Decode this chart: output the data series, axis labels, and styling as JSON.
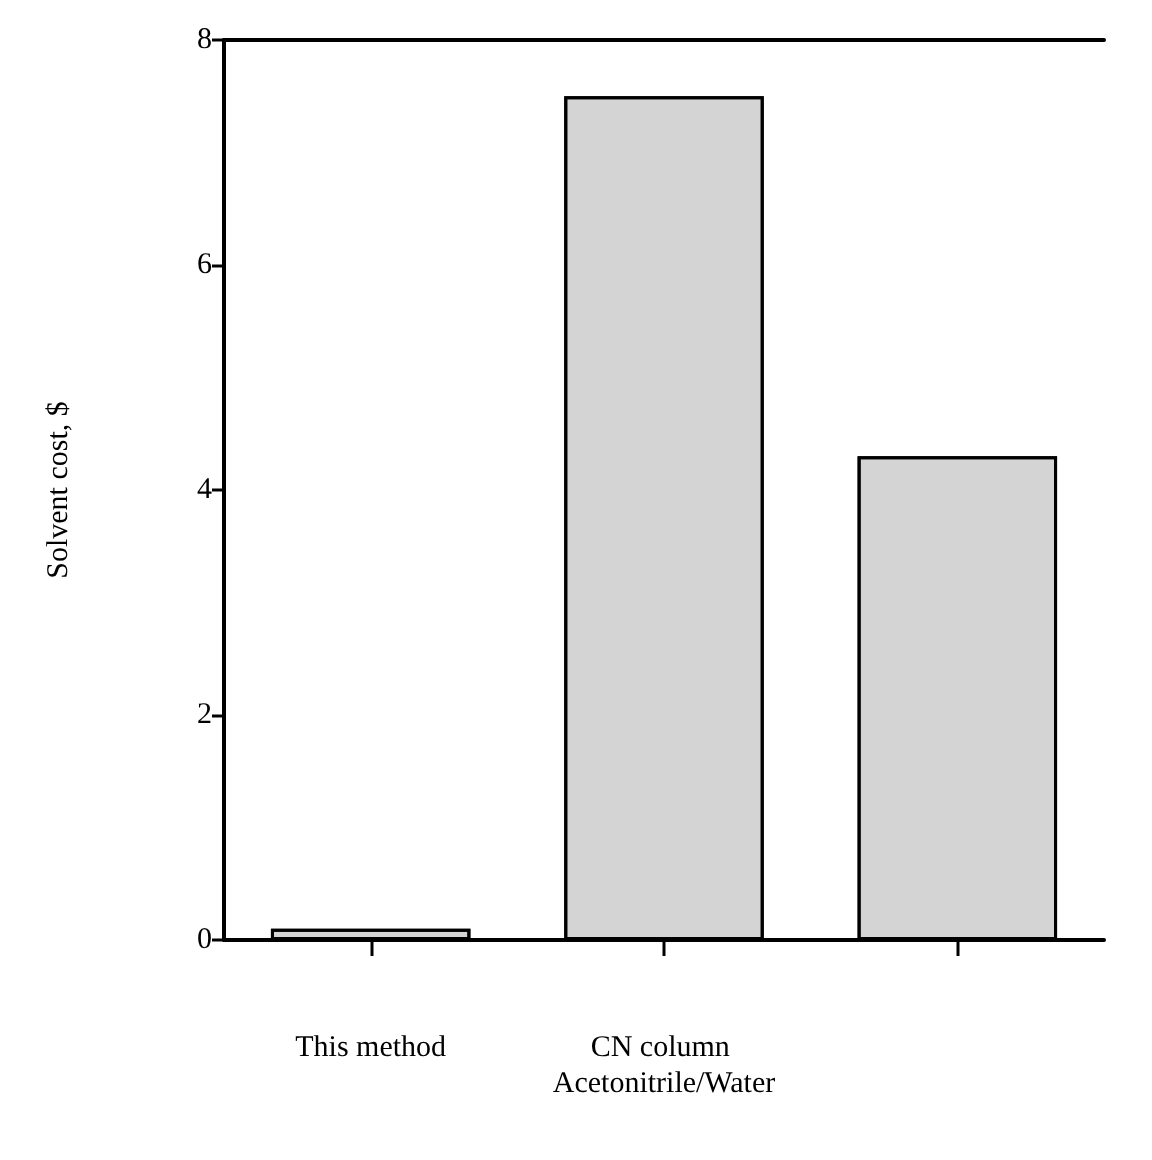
{
  "chart_data": {
    "type": "bar",
    "ylabel": "Solvent cost, $",
    "categories": [
      "This method",
      "CN column Acetonitrile/Water",
      null
    ],
    "values": [
      0.1,
      7.5,
      4.3
    ],
    "color": "#d4d4d4",
    "ylim": [
      0,
      8
    ],
    "yticks": [
      0,
      2,
      4,
      6,
      8
    ]
  }
}
